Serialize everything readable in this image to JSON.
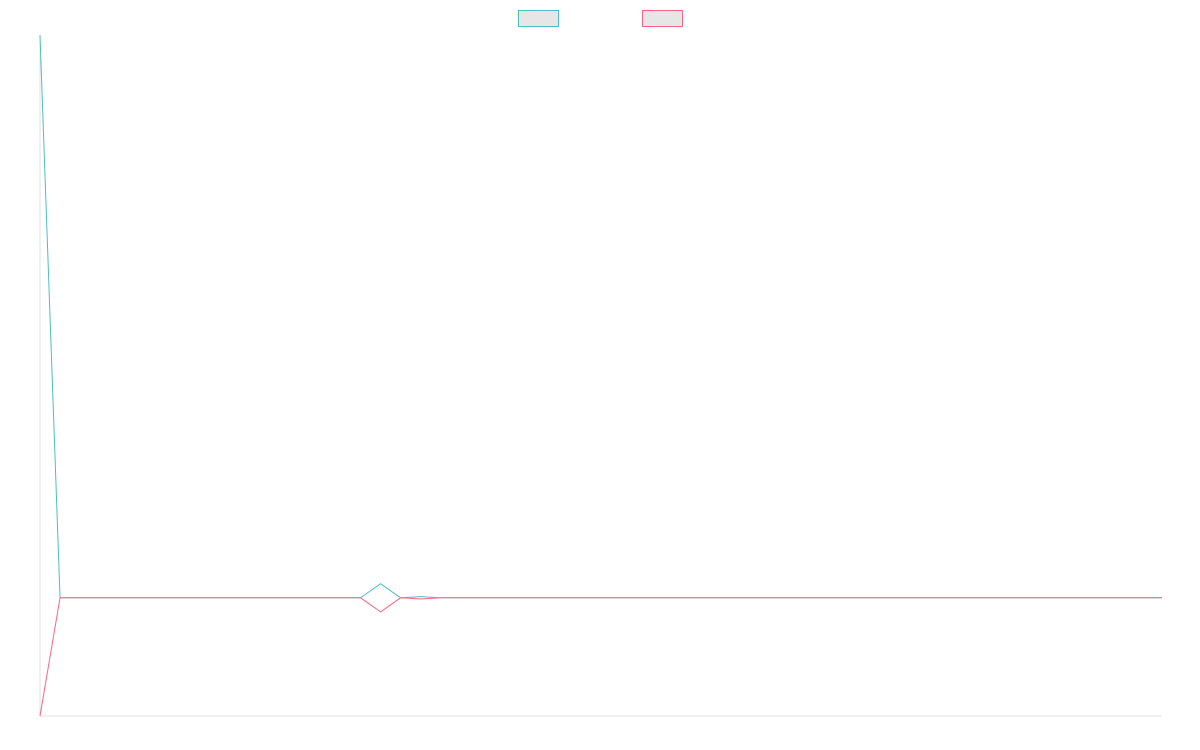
{
  "chart_data": {
    "type": "line",
    "x": [
      0,
      1,
      2,
      3,
      4,
      5,
      6,
      7,
      8,
      9,
      10,
      11,
      12,
      13,
      14,
      15,
      16,
      17,
      18,
      19,
      20,
      21,
      22,
      23,
      24,
      25,
      26,
      27,
      28,
      29,
      30,
      31,
      32,
      33,
      34,
      35,
      36,
      37,
      38,
      39,
      40,
      41,
      42,
      43,
      44,
      45,
      46,
      47,
      48,
      49,
      50,
      51,
      52,
      53,
      54,
      55,
      56
    ],
    "series": [
      {
        "color": "#4bc0c0",
        "values": [
          100,
          0,
          0,
          0,
          0,
          0,
          0,
          0,
          0,
          0,
          0,
          0,
          0,
          0,
          0,
          0,
          0,
          2.5,
          0,
          0.2,
          0,
          0,
          0,
          0,
          0,
          0,
          0,
          0,
          0,
          0,
          0,
          0,
          0,
          0,
          0,
          0,
          0,
          0,
          0,
          0,
          0,
          0,
          0,
          0,
          0,
          0,
          0,
          0,
          0,
          0,
          0,
          0,
          0,
          0,
          0,
          0,
          0
        ]
      },
      {
        "color": "#ff6384",
        "values": [
          -21,
          0,
          0,
          0,
          0,
          0,
          0,
          0,
          0,
          0,
          0,
          0,
          0,
          0,
          0,
          0,
          0,
          -2.5,
          0,
          -0.2,
          0,
          0,
          0,
          0,
          0,
          0,
          0,
          0,
          0,
          0,
          0,
          0,
          0,
          0,
          0,
          0,
          0,
          0,
          0,
          0,
          0,
          0,
          0,
          0,
          0,
          0,
          0,
          0,
          0,
          0,
          0,
          0,
          0,
          0,
          0,
          0,
          0
        ]
      }
    ],
    "ylim": [
      -21,
      100
    ],
    "grid": false,
    "legend": "top"
  }
}
